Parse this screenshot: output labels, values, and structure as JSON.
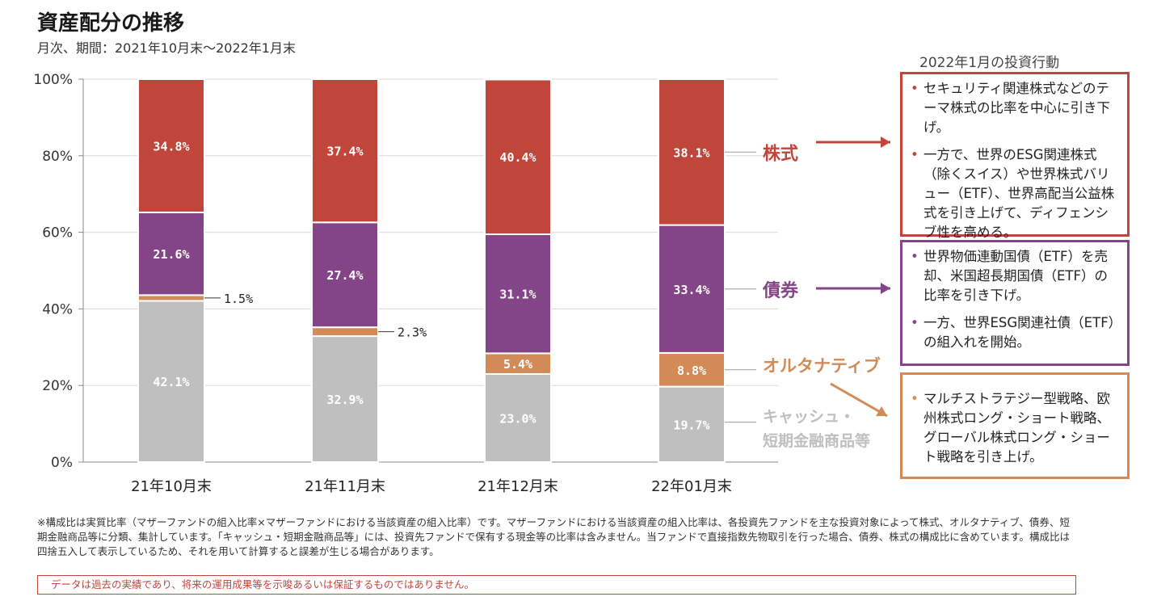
{
  "header": {
    "title": "資産配分の推移",
    "subtitle": "月次、期間：2021年10月末～2022年1月末"
  },
  "chart_data": {
    "type": "bar",
    "stacked": true,
    "categories": [
      "21年10月末",
      "21年11月末",
      "21年12月末",
      "22年01月末"
    ],
    "series": [
      {
        "name": "キャッシュ・短期金融商品等",
        "values": [
          42.1,
          32.9,
          23.0,
          19.7
        ],
        "labels": [
          "42.1%",
          "32.9%",
          "23.0%",
          "19.7%"
        ],
        "color": "#bfbfbf"
      },
      {
        "name": "オルタナティブ",
        "values": [
          1.5,
          2.3,
          5.4,
          8.8
        ],
        "labels": [
          "1.5%",
          "2.3%",
          "5.4%",
          "8.8%"
        ],
        "color": "#d28a57"
      },
      {
        "name": "債券",
        "values": [
          21.6,
          27.4,
          31.1,
          33.4
        ],
        "labels": [
          "21.6%",
          "27.4%",
          "31.1%",
          "33.4%"
        ],
        "color": "#834587"
      },
      {
        "name": "株式",
        "values": [
          34.8,
          37.4,
          40.4,
          38.1
        ],
        "labels": [
          "34.8%",
          "37.4%",
          "40.4%",
          "38.1%"
        ],
        "color": "#c0463b"
      }
    ],
    "yticks": [
      "0%",
      "20%",
      "40%",
      "60%",
      "80%",
      "100%"
    ],
    "ylim": [
      0,
      100
    ],
    "grid": true,
    "category_labels": {
      "equity": "株式",
      "bond": "債券",
      "alternative": "オルタナティブ",
      "cash_line1": "キャッシュ・",
      "cash_line2": "短期金融商品等"
    },
    "label_colors": {
      "equity": "#c0463b",
      "bond": "#834587",
      "alternative": "#d28a57",
      "cash": "#bfbfbf"
    }
  },
  "actions": {
    "title": "2022年1月の投資行動",
    "equity_items": [
      "セキュリティ関連株式などのテーマ株式の比率を中心に引き下げ。",
      "一方で、世界のESG関連株式（除くスイス）や世界株式バリュー（ETF）、世界高配当公益株式を引き上げて、ディフェンシブ性を高める。"
    ],
    "bond_items": [
      "世界物価連動国債（ETF）を売却、米国超長期国債（ETF）の比率を引き下げ。",
      "一方、世界ESG関連社債（ETF）の組入れを開始。"
    ],
    "alternative_items": [
      "マルチストラテジー型戦略、欧州株式ロング・ショート戦略、グローバル株式ロング・ショート戦略を引き上げ。"
    ]
  },
  "footnote": "※構成比は実質比率（マザーファンドの組入比率×マザーファンドにおける当該資産の組入比率）です。マザーファンドにおける当該資産の組入比率は、各投資先ファンドを主な投資対象によって株式、オルタナティブ、債券、短期金融商品等に分類、集計しています。「キャッシュ・短期金融商品等」には、投資先ファンドで保有する現金等の比率は含みません。当ファンドで直接指数先物取引を行った場合、債券、株式の構成比に含めています。構成比は 四捨五入して表示しているため、それを用いて計算すると誤差が生じる場合があります。",
  "disclaimer": "データは過去の実績であり、将来の運用成果等を示唆あるいは保証するものではありません。"
}
